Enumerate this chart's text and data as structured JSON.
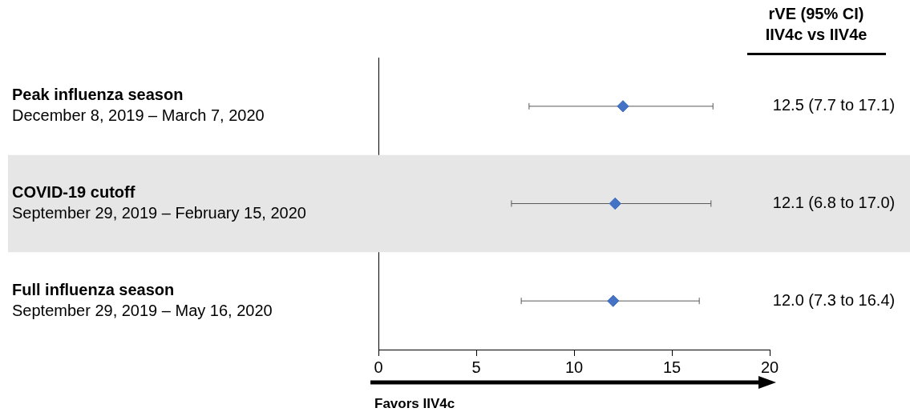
{
  "chart_data": {
    "type": "scatter",
    "orientation": "horizontal",
    "categories": [
      "Peak influenza season\nDecember 8, 2019 – March 7, 2020",
      "COVID-19 cutoff\nSeptember 29, 2019 – February 15, 2020",
      "Full influenza season\nSeptember 29, 2019 – May 16, 2020"
    ],
    "values": [
      12.5,
      12.1,
      12.0
    ],
    "errors": [
      [
        7.7,
        17.1
      ],
      [
        6.8,
        17.0
      ],
      [
        7.3,
        16.4
      ]
    ],
    "value_labels": [
      "12.5 (7.7 to 17.1)",
      "12.1 (6.8 to 17.0)",
      "12.0 (7.3 to 16.4)"
    ],
    "color": "#4472c4",
    "marker": "diamond",
    "grid": false,
    "legend": false,
    "bands": [
      {
        "axis": "y",
        "from": "COVID-19 cutoff\nSeptember 29, 2019 – February 15, 2020",
        "to": "COVID-19 cutoff\nSeptember 29, 2019 – February 15, 2020",
        "color": "#e6e6e6"
      }
    ],
    "xlim": [
      0,
      20
    ],
    "xticks": [
      0,
      5,
      10,
      15,
      20
    ],
    "annotations": [
      "rVE (95% CI)\nIIV4c vs IIV4e",
      "Favors IIV4c"
    ]
  }
}
